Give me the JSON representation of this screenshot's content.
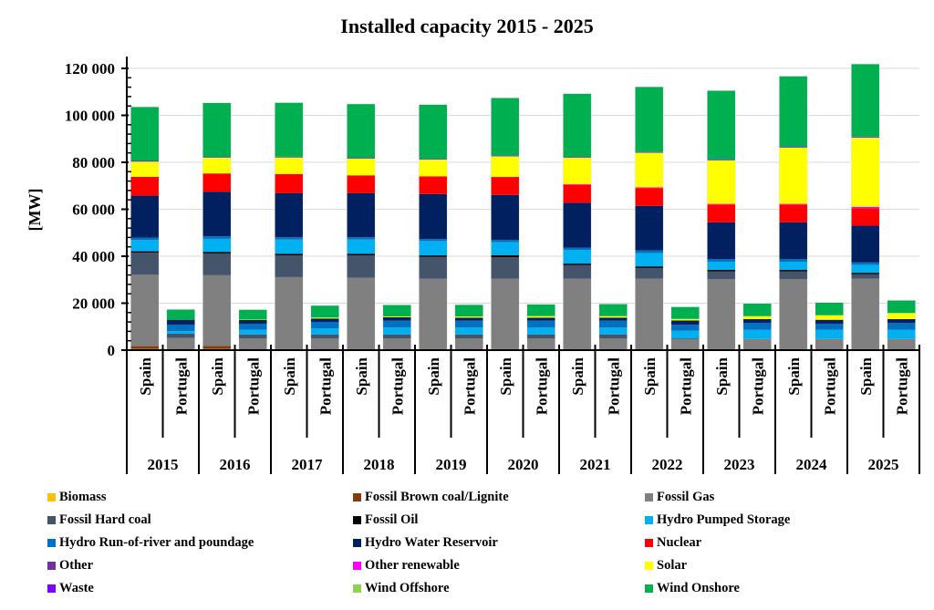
{
  "chart_data": {
    "type": "bar",
    "stacked": true,
    "title": "Installed capacity 2015 - 2025",
    "ylabel": "[MW]",
    "xlabel": "",
    "ylim": [
      0,
      120000
    ],
    "yticks": [
      0,
      20000,
      40000,
      60000,
      80000,
      100000,
      120000
    ],
    "ytick_labels": [
      "0",
      "20 000",
      "40 000",
      "60 000",
      "80 000",
      "100 000",
      "120 000"
    ],
    "grid": true,
    "legend_position": "bottom",
    "groups": [
      "2015",
      "2016",
      "2017",
      "2018",
      "2019",
      "2020",
      "2021",
      "2022",
      "2023",
      "2024",
      "2025"
    ],
    "countries": [
      "Spain",
      "Portugal"
    ],
    "categories": [
      "Spain 2015",
      "Portugal 2015",
      "Spain 2016",
      "Portugal 2016",
      "Spain 2017",
      "Portugal 2017",
      "Spain 2018",
      "Portugal 2018",
      "Spain 2019",
      "Portugal 2019",
      "Spain 2020",
      "Portugal 2020",
      "Spain 2021",
      "Portugal 2021",
      "Spain 2022",
      "Portugal 2022",
      "Spain 2023",
      "Portugal 2023",
      "Spain 2024",
      "Portugal 2024",
      "Spain 2025",
      "Portugal 2025"
    ],
    "series": [
      {
        "name": "Biomass",
        "color": "#FFC000",
        "values": [
          500,
          100,
          500,
          100,
          400,
          100,
          400,
          100,
          400,
          100,
          400,
          100,
          400,
          100,
          400,
          100,
          400,
          100,
          400,
          100,
          400,
          100
        ]
      },
      {
        "name": "Fossil Brown coal/Lignite",
        "color": "#843C0C",
        "values": [
          1200,
          0,
          1300,
          0,
          0,
          0,
          0,
          0,
          0,
          0,
          0,
          0,
          0,
          0,
          0,
          0,
          0,
          0,
          0,
          0,
          0,
          0
        ]
      },
      {
        "name": "Fossil Gas",
        "color": "#808080",
        "values": [
          30400,
          5070,
          30100,
          4950,
          30700,
          4950,
          30400,
          4950,
          30000,
          4950,
          30000,
          4950,
          30000,
          4950,
          30000,
          4680,
          29900,
          4680,
          29900,
          4680,
          30000,
          4680
        ]
      },
      {
        "name": "Fossil Hard coal",
        "color": "#44546A",
        "values": [
          9400,
          1830,
          9300,
          1670,
          9300,
          1670,
          9600,
          1670,
          9300,
          1670,
          9200,
          1670,
          5800,
          1670,
          4600,
          0,
          3200,
          0,
          3200,
          0,
          1900,
          0
        ]
      },
      {
        "name": "Fossil Oil",
        "color": "#000000",
        "values": [
          600,
          0,
          660,
          0,
          660,
          0,
          660,
          0,
          660,
          0,
          890,
          0,
          660,
          0,
          660,
          200,
          660,
          0,
          660,
          0,
          660,
          0
        ]
      },
      {
        "name": "Hydro Pumped Storage",
        "color": "#00B0F0",
        "values": [
          4780,
          1050,
          5550,
          1940,
          6060,
          2600,
          6060,
          2870,
          6100,
          2870,
          5550,
          2870,
          5830,
          2870,
          5710,
          3260,
          3500,
          3880,
          3500,
          3880,
          3380,
          3880
        ]
      },
      {
        "name": "Hydro Run-of-river and poundage",
        "color": "#0070C0",
        "values": [
          1050,
          2830,
          1050,
          2600,
          930,
          2720,
          930,
          2950,
          890,
          2950,
          930,
          2950,
          900,
          2950,
          1170,
          2560,
          1170,
          2990,
          1170,
          2600,
          1010,
          2870
        ]
      },
      {
        "name": "Hydro Water Reservoir",
        "color": "#002060",
        "values": [
          17860,
          2060,
          19030,
          1550,
          18870,
          1440,
          18870,
          1440,
          19150,
          1300,
          19150,
          1300,
          19180,
          1320,
          18870,
          1830,
          15650,
          1550,
          15650,
          1670,
          15690,
          1670
        ]
      },
      {
        "name": "Nuclear",
        "color": "#FF0000",
        "values": [
          8040,
          0,
          7770,
          0,
          8040,
          0,
          7530,
          0,
          7530,
          0,
          7650,
          0,
          7610,
          0,
          7650,
          0,
          7530,
          0,
          7530,
          0,
          7380,
          0
        ]
      },
      {
        "name": "Other",
        "color": "#7030A0",
        "values": [
          0,
          0,
          0,
          0,
          0,
          0,
          0,
          0,
          0,
          0,
          0,
          0,
          0,
          0,
          0,
          0,
          0,
          0,
          0,
          0,
          0,
          0
        ]
      },
      {
        "name": "Other renewable",
        "color": "#FF00FF",
        "values": [
          0,
          0,
          0,
          0,
          0,
          0,
          0,
          0,
          0,
          0,
          0,
          0,
          300,
          0,
          300,
          0,
          300,
          0,
          300,
          0,
          620,
          0
        ]
      },
      {
        "name": "Solar",
        "color": "#FFFF00",
        "values": [
          6450,
          0,
          6720,
          200,
          7110,
          390,
          7110,
          400,
          7110,
          500,
          8780,
          650,
          11350,
          620,
          14730,
          660,
          18570,
          1280,
          23930,
          1940,
          29510,
          2600
        ]
      },
      {
        "name": "Waste",
        "color": "#7F00FF",
        "values": [
          300,
          0,
          300,
          0,
          300,
          0,
          300,
          0,
          300,
          0,
          300,
          0,
          300,
          0,
          300,
          0,
          300,
          0,
          300,
          0,
          400,
          0
        ]
      },
      {
        "name": "Wind Offshore",
        "color": "#92D050",
        "values": [
          0,
          0,
          0,
          0,
          0,
          0,
          0,
          0,
          0,
          0,
          0,
          0,
          0,
          0,
          0,
          0,
          0,
          0,
          0,
          0,
          0,
          0
        ]
      },
      {
        "name": "Wind Onshore",
        "color": "#00B050",
        "values": [
          23070,
          4430,
          23070,
          4270,
          23070,
          5170,
          23030,
          4930,
          23180,
          5050,
          24620,
          5050,
          26950,
          5200,
          27810,
          5170,
          29400,
          5440,
          30170,
          5440,
          30950,
          5440
        ]
      }
    ]
  }
}
